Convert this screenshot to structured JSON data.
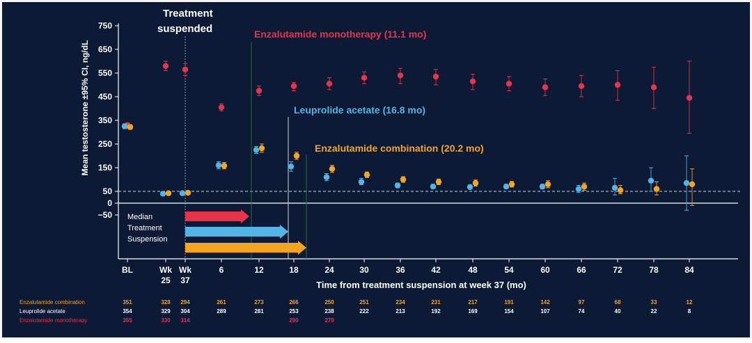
{
  "colors": {
    "background": "#0c1a35",
    "enza_mono": "#e8344b",
    "leuprolide": "#53b5e6",
    "enza_combo": "#f5a51e",
    "axis": "#ffffff",
    "ref_line": "#cfd8e3"
  },
  "annotations": {
    "suspend_line1": "Treatment",
    "suspend_line2": "suspended",
    "mono_label": "Enzalutamide monotherapy (11.1 mo)",
    "leup_label": "Leuprolide acetate (16.8 mo)",
    "combo_label": "Enzalutamide combination (20.2 mo)",
    "legend_line1": "Median",
    "legend_line2": "Treatment",
    "legend_line3": "Suspension"
  },
  "chart_data": {
    "type": "scatter",
    "ylabel": "Mean testosterone ±95% CI, ng/dL",
    "xlabel": "Time from treatment suspension at week 37 (mo)",
    "ylim": [
      -75,
      760
    ],
    "yticks": [
      -50,
      0,
      50,
      150,
      250,
      350,
      450,
      550,
      650,
      750
    ],
    "reference_line": 50,
    "grid": false,
    "categories": [
      "BL",
      "Wk 25",
      "Wk 37",
      "6",
      "12",
      "18",
      "24",
      "30",
      "36",
      "42",
      "48",
      "54",
      "60",
      "66",
      "72",
      "78",
      "84"
    ],
    "xtick_labels": [
      [
        "BL"
      ],
      [
        "Wk",
        "25"
      ],
      [
        "Wk",
        "37"
      ],
      [
        "6"
      ],
      [
        "12"
      ],
      [
        "18"
      ],
      [
        "24"
      ],
      [
        "30"
      ],
      [
        "36"
      ],
      [
        "42"
      ],
      [
        "48"
      ],
      [
        "54"
      ],
      [
        "60"
      ],
      [
        "66"
      ],
      [
        "72"
      ],
      [
        "78"
      ],
      [
        "84"
      ]
    ],
    "median_suspension_mo": {
      "Enzalutamide monotherapy": 11.1,
      "Leuprolide acetate": 16.8,
      "Enzalutamide combination": 20.2
    },
    "series": [
      {
        "name": "Enzalutamide monotherapy",
        "values": [
          330,
          580,
          565,
          405,
          475,
          495,
          505,
          530,
          540,
          535,
          515,
          505,
          490,
          495,
          500,
          490,
          445
        ],
        "ci_low": [
          315,
          560,
          540,
          390,
          455,
          475,
          480,
          505,
          505,
          500,
          480,
          475,
          455,
          450,
          435,
          400,
          295
        ],
        "ci_high": [
          340,
          600,
          590,
          420,
          495,
          510,
          530,
          555,
          570,
          565,
          545,
          535,
          525,
          540,
          560,
          575,
          600
        ]
      },
      {
        "name": "Leuprolide acetate",
        "values": [
          325,
          40,
          42,
          160,
          225,
          155,
          110,
          90,
          75,
          70,
          68,
          70,
          70,
          60,
          65,
          95,
          85
        ],
        "ci_low": [
          315,
          35,
          37,
          145,
          210,
          135,
          95,
          78,
          65,
          62,
          60,
          62,
          60,
          45,
          35,
          50,
          -30
        ],
        "ci_high": [
          335,
          45,
          47,
          175,
          240,
          175,
          125,
          105,
          85,
          80,
          78,
          80,
          80,
          75,
          105,
          150,
          200
        ]
      },
      {
        "name": "Enzalutamide combination",
        "values": [
          322,
          42,
          44,
          158,
          232,
          200,
          145,
          120,
          100,
          90,
          85,
          80,
          80,
          70,
          55,
          60,
          80
        ],
        "ci_low": [
          312,
          37,
          39,
          145,
          215,
          185,
          130,
          108,
          88,
          78,
          72,
          68,
          65,
          55,
          40,
          35,
          -10
        ],
        "ci_high": [
          332,
          47,
          49,
          172,
          250,
          215,
          160,
          132,
          112,
          102,
          98,
          92,
          95,
          85,
          75,
          90,
          145
        ]
      }
    ],
    "at_risk": {
      "rows": [
        {
          "name": "Enzalutamide combination",
          "values": [
            "351",
            "328",
            "294",
            "261",
            "273",
            "266",
            "250",
            "251",
            "234",
            "231",
            "217",
            "191",
            "142",
            "97",
            "68",
            "33",
            "12"
          ]
        },
        {
          "name": "Leuprolide acetate",
          "values": [
            "354",
            "329",
            "304",
            "289",
            "281",
            "253",
            "238",
            "222",
            "213",
            "192",
            "169",
            "154",
            "107",
            "74",
            "40",
            "22",
            "8"
          ]
        },
        {
          "name": "Enzalutamide monotherapy",
          "values": [
            "355",
            "330",
            "314",
            "",
            "",
            "290",
            "279",
            "",
            "",
            "",
            "",
            "",
            "",
            "",
            "",
            "",
            ""
          ]
        }
      ]
    }
  }
}
